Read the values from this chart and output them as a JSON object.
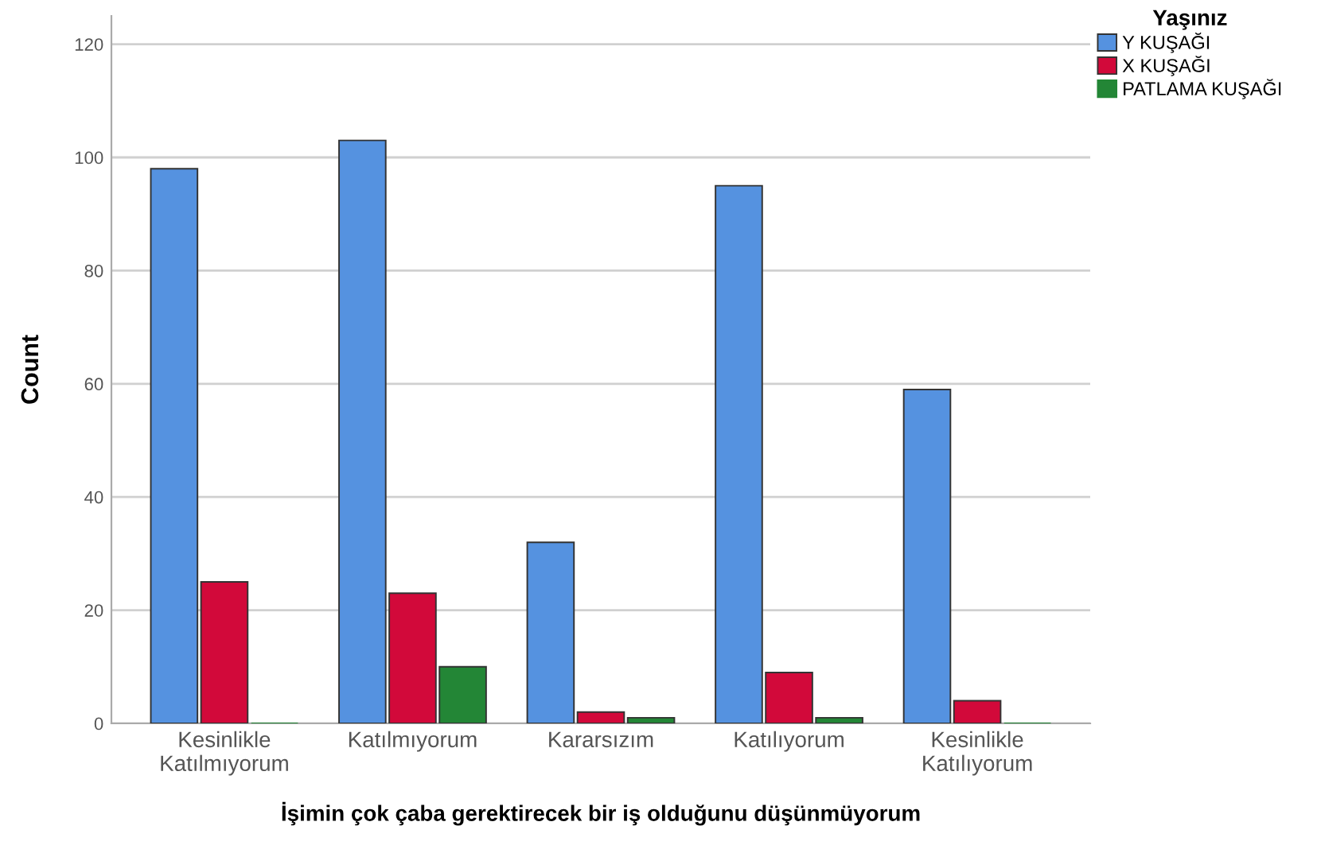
{
  "chart_data": {
    "type": "bar",
    "xlabel": "İşimin çok çaba gerektirecek bir iş olduğunu düşünmüyorum",
    "ylabel": "Count",
    "legend_title": "Yaşınız",
    "categories": [
      "Kesinlikle\nKatılmıyorum",
      "Katılmıyorum",
      "Kararsızım",
      "Katılıyorum",
      "Kesinlikle\nKatılıyorum"
    ],
    "series": [
      {
        "name": "Y KUŞAĞI",
        "color": "#5592e0",
        "values": [
          98,
          103,
          32,
          95,
          59
        ]
      },
      {
        "name": "X KUŞAĞI",
        "color": "#d2093a",
        "values": [
          25,
          23,
          2,
          9,
          4
        ]
      },
      {
        "name": "PATLAMA KUŞAĞI",
        "color": "#238636",
        "values": [
          0,
          10,
          1,
          1,
          0
        ]
      }
    ],
    "ylim": [
      0,
      125
    ],
    "yticks": [
      0,
      20,
      40,
      60,
      80,
      100,
      120
    ],
    "grid": "y",
    "legend": "top right"
  }
}
